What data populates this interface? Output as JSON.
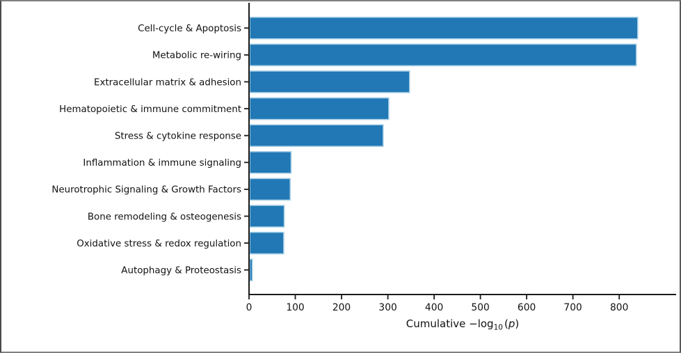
{
  "figure": {
    "background": "#ffffff",
    "border_color": "#7f7f7f"
  },
  "chart_data": {
    "type": "bar",
    "orientation": "horizontal",
    "title": "",
    "xlabel": "Cumulative −log10(p)",
    "xlabel_rich": {
      "prefix": "Cumulative −log",
      "subscript": "10",
      "open_paren": "(",
      "variable": "p",
      "close_paren": ")"
    },
    "ylabel": "",
    "categories": [
      "Cell-cycle & Apoptosis",
      "Metabolic re-wiring",
      "Extracellular matrix & adhesion",
      "Hematopoietic & immune commitment",
      "Stress & cytokine response",
      "Inflammation & immune signaling",
      "Neurotrophic Signaling & Growth Factors",
      "Bone remodeling & osteogenesis",
      "Oxidative stress & redox regulation",
      "Autophagy & Proteostasis"
    ],
    "values": [
      840,
      837,
      347,
      302,
      290,
      91,
      89,
      76,
      75,
      7
    ],
    "xticks": [
      0,
      100,
      200,
      300,
      400,
      500,
      600,
      700,
      800
    ],
    "xlim": [
      0,
      905
    ],
    "grid": false,
    "legend": null,
    "bar_color": "#2178b5",
    "bar_edge_color": "#a9d0e6",
    "axis_color": "#1a1a1a",
    "text_color": "#111111"
  }
}
